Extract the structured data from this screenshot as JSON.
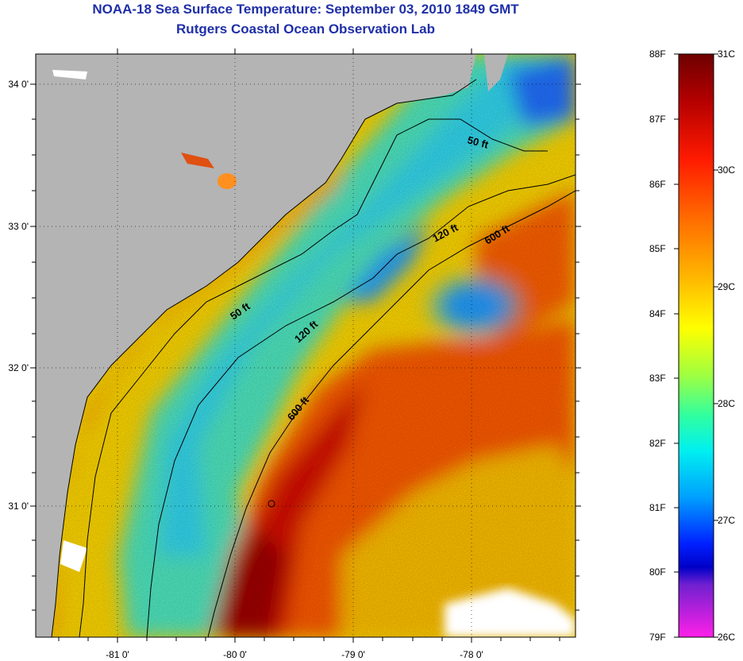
{
  "title": "NOAA-18 Sea Surface Temperature:  September 03, 2010 1849 GMT",
  "subtitle": "Rutgers Coastal Ocean Observation Lab",
  "map": {
    "lat_ticks": [
      "34 0'",
      "33 0'",
      "32 0'",
      "31 0'"
    ],
    "lon_ticks": [
      "-81 0'",
      "-80 0'",
      "-79 0'",
      "-78 0'"
    ],
    "contour_labels": [
      "50 ft",
      "50 ft",
      "120 ft",
      "120 ft",
      "600 ft",
      "600 ft"
    ],
    "land_color": "#b4b4b4",
    "cloud_color": "#ffffff"
  },
  "colorbar": {
    "fahrenheit": [
      "88F",
      "87F",
      "86F",
      "85F",
      "84F",
      "83F",
      "82F",
      "81F",
      "80F",
      "79F"
    ],
    "celsius": [
      "31C",
      "30C",
      "29C",
      "28C",
      "27C",
      "26C"
    ],
    "colors": [
      "#7a0000",
      "#c80000",
      "#ff2a00",
      "#ff7a00",
      "#ffd000",
      "#d8ff20",
      "#60ff80",
      "#00f0f0",
      "#00a0ff",
      "#0030ff",
      "#0000d0",
      "#8020d0",
      "#ff20e0"
    ]
  }
}
